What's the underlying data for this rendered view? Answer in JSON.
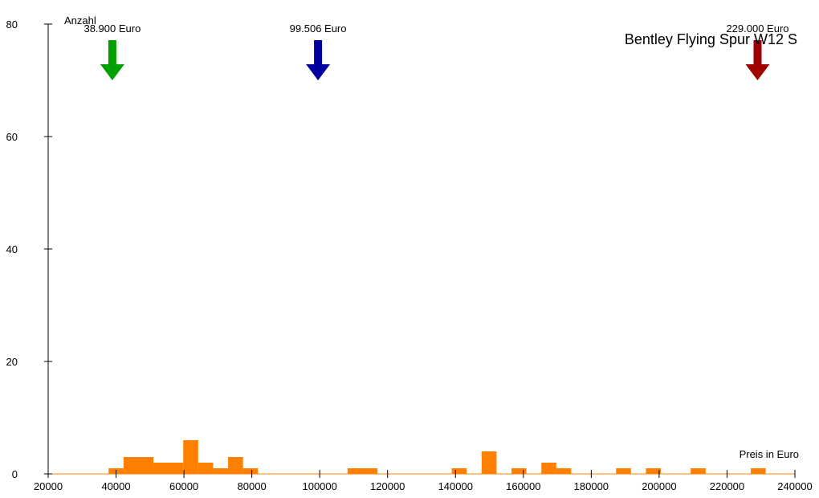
{
  "chart_data": {
    "type": "bar",
    "title": "Bentley Flying Spur W12 S",
    "xlabel": "Preis in Euro",
    "ylabel": "Anzahl",
    "xlim": [
      20000,
      240000
    ],
    "ylim": [
      0,
      80
    ],
    "x_ticks": [
      20000,
      40000,
      60000,
      80000,
      100000,
      120000,
      140000,
      160000,
      180000,
      200000,
      220000,
      240000
    ],
    "y_ticks": [
      0,
      20,
      40,
      60,
      80
    ],
    "grid": false,
    "bar_color": "#ff8000",
    "bins": [
      {
        "x0": 37800,
        "x1": 42200,
        "count": 1
      },
      {
        "x0": 42200,
        "x1": 51000,
        "count": 3
      },
      {
        "x0": 51000,
        "x1": 59800,
        "count": 2
      },
      {
        "x0": 59800,
        "x1": 64200,
        "count": 6
      },
      {
        "x0": 64200,
        "x1": 68600,
        "count": 2
      },
      {
        "x0": 68600,
        "x1": 73000,
        "count": 1
      },
      {
        "x0": 73000,
        "x1": 77400,
        "count": 3
      },
      {
        "x0": 77400,
        "x1": 81800,
        "count": 1
      },
      {
        "x0": 108200,
        "x1": 117000,
        "count": 1
      },
      {
        "x0": 138900,
        "x1": 143300,
        "count": 1
      },
      {
        "x0": 147700,
        "x1": 152100,
        "count": 4
      },
      {
        "x0": 156500,
        "x1": 160900,
        "count": 1
      },
      {
        "x0": 165300,
        "x1": 169700,
        "count": 2
      },
      {
        "x0": 169700,
        "x1": 174100,
        "count": 1
      },
      {
        "x0": 187300,
        "x1": 191700,
        "count": 1
      },
      {
        "x0": 196100,
        "x1": 200500,
        "count": 1
      },
      {
        "x0": 209300,
        "x1": 213700,
        "count": 1
      },
      {
        "x0": 227000,
        "x1": 231400,
        "count": 1
      }
    ],
    "markers": [
      {
        "value": 38900,
        "label": "38.900 Euro",
        "color": "#00a000"
      },
      {
        "value": 99506,
        "label": "99.506 Euro",
        "color": "#0000a0"
      },
      {
        "value": 229000,
        "label": "229.000 Euro",
        "color": "#a00000"
      }
    ]
  }
}
